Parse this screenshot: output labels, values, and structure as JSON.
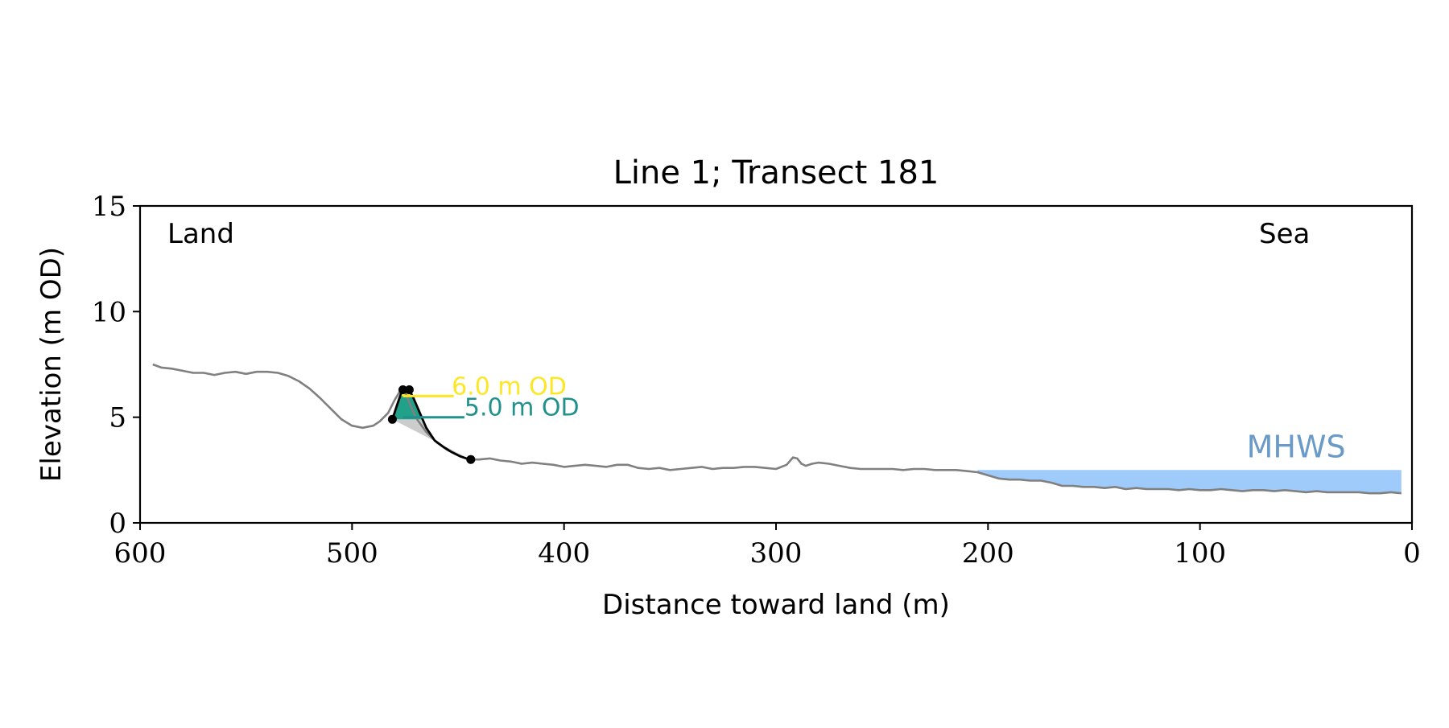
{
  "chart_data": {
    "type": "line",
    "title": "Line 1; Transect 181",
    "xlabel": "Distance toward land (m)",
    "ylabel": "Elevation (m OD)",
    "xlim": [
      600,
      0
    ],
    "ylim": [
      0,
      15
    ],
    "x_direction": "reversed",
    "grid": false,
    "xticks": [
      600,
      500,
      400,
      300,
      200,
      100,
      0
    ],
    "yticks": [
      0,
      5,
      10,
      15
    ],
    "annotations": {
      "land_label": "Land",
      "sea_label": "Sea",
      "mhws_label": "MHWS",
      "level_6_label": "6.0 m OD",
      "level_5_label": "5.0 m OD"
    },
    "colors": {
      "profile": "#808080",
      "dune_outline": "#000000",
      "dune_fill_5m": "#21a08a",
      "dune_fill_6m": "#fde725",
      "dune_fill_below": "#cccccc",
      "mhws_fill": "#9ecbfa",
      "mhws_text": "#6a9ac8",
      "level_6": "#fde725",
      "level_5": "#21918c"
    },
    "mhws": {
      "elevation": 2.5,
      "x_start": 205,
      "x_end": 5
    },
    "levels": [
      {
        "elevation": 6.0,
        "x_start": 476,
        "x_end": 452
      },
      {
        "elevation": 5.0,
        "x_start": 476,
        "x_end": 447
      }
    ],
    "profile": {
      "name": "Elevation profile",
      "x": [
        594,
        590,
        585,
        580,
        575,
        570,
        565,
        560,
        555,
        550,
        545,
        540,
        535,
        530,
        525,
        520,
        515,
        510,
        505,
        500,
        495,
        490,
        487,
        483,
        480,
        477,
        475,
        473,
        470,
        465,
        460,
        455,
        450,
        445,
        440,
        435,
        430,
        425,
        420,
        415,
        410,
        405,
        400,
        395,
        390,
        385,
        380,
        375,
        370,
        365,
        360,
        355,
        350,
        345,
        340,
        335,
        330,
        325,
        320,
        315,
        310,
        305,
        300,
        295,
        292,
        290,
        288,
        286,
        283,
        280,
        275,
        270,
        265,
        260,
        255,
        250,
        245,
        240,
        235,
        230,
        225,
        220,
        215,
        210,
        205,
        200,
        195,
        190,
        185,
        180,
        175,
        170,
        165,
        160,
        155,
        150,
        145,
        140,
        135,
        130,
        125,
        120,
        115,
        110,
        105,
        100,
        95,
        90,
        85,
        80,
        75,
        70,
        65,
        60,
        55,
        50,
        45,
        40,
        35,
        30,
        25,
        20,
        15,
        10,
        5
      ],
      "y": [
        7.5,
        7.35,
        7.3,
        7.2,
        7.1,
        7.1,
        7.0,
        7.1,
        7.15,
        7.05,
        7.15,
        7.15,
        7.1,
        6.95,
        6.7,
        6.35,
        5.9,
        5.4,
        4.9,
        4.6,
        4.5,
        4.6,
        4.8,
        5.2,
        5.8,
        6.3,
        6.2,
        5.7,
        5.0,
        4.3,
        3.8,
        3.45,
        3.2,
        3.0,
        3.0,
        3.05,
        2.95,
        2.9,
        2.8,
        2.85,
        2.8,
        2.75,
        2.65,
        2.7,
        2.75,
        2.7,
        2.65,
        2.75,
        2.75,
        2.6,
        2.55,
        2.6,
        2.5,
        2.55,
        2.6,
        2.65,
        2.55,
        2.6,
        2.6,
        2.65,
        2.65,
        2.6,
        2.55,
        2.75,
        3.1,
        3.05,
        2.8,
        2.7,
        2.8,
        2.85,
        2.8,
        2.7,
        2.6,
        2.55,
        2.55,
        2.55,
        2.55,
        2.5,
        2.55,
        2.55,
        2.5,
        2.5,
        2.5,
        2.45,
        2.4,
        2.25,
        2.1,
        2.05,
        2.05,
        2.0,
        2.0,
        1.9,
        1.75,
        1.75,
        1.7,
        1.7,
        1.65,
        1.7,
        1.6,
        1.65,
        1.6,
        1.6,
        1.6,
        1.55,
        1.6,
        1.55,
        1.55,
        1.6,
        1.55,
        1.5,
        1.55,
        1.55,
        1.5,
        1.55,
        1.5,
        1.45,
        1.5,
        1.45,
        1.45,
        1.45,
        1.45,
        1.4,
        1.4,
        1.45,
        1.4
      ]
    },
    "dune": {
      "points": [
        {
          "x": 481,
          "y": 4.9
        },
        {
          "x": 476,
          "y": 6.3
        },
        {
          "x": 473,
          "y": 6.3
        },
        {
          "x": 444,
          "y": 3.0
        }
      ],
      "crest_x": [
        476,
        473
      ],
      "x": [
        481,
        479,
        477,
        476,
        474,
        473,
        471,
        468,
        465,
        461,
        457,
        453,
        449,
        446,
        444
      ],
      "y": [
        4.9,
        5.5,
        6.1,
        6.3,
        6.3,
        6.3,
        5.9,
        5.2,
        4.5,
        3.9,
        3.6,
        3.35,
        3.15,
        3.05,
        3.0
      ]
    }
  }
}
